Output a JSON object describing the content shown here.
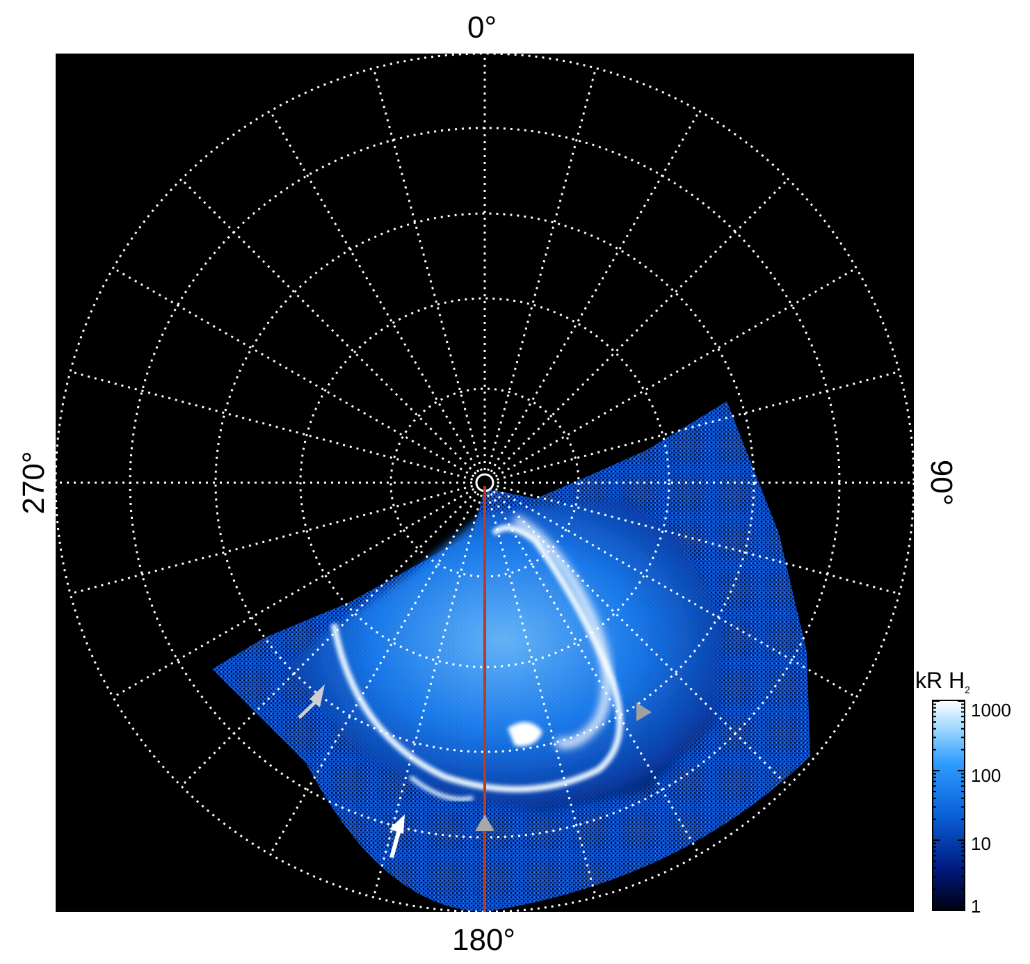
{
  "axis_labels": {
    "top": "0°",
    "bottom": "180°",
    "left": "270°",
    "right": "90°"
  },
  "colorbar": {
    "title": "kR H",
    "title_subscript": "2",
    "ticks": [
      "1000",
      "100",
      "10",
      "1"
    ],
    "scale": "log",
    "range": [
      1,
      1000
    ],
    "colors": [
      "#000010",
      "#001a80",
      "#0a5fd6",
      "#2e9cff",
      "#a8dcff",
      "#ffffff"
    ]
  },
  "colors": {
    "background": "#000000",
    "grid": "#ffffff",
    "meridian_line": "#c0391f",
    "arrow_white": "#f2f2f2",
    "arrow_gray": "#a0a0a0",
    "aurora_bright": "#ffffff",
    "aurora_mid": "#1f86ff",
    "aurora_dark": "#002a8a"
  }
}
